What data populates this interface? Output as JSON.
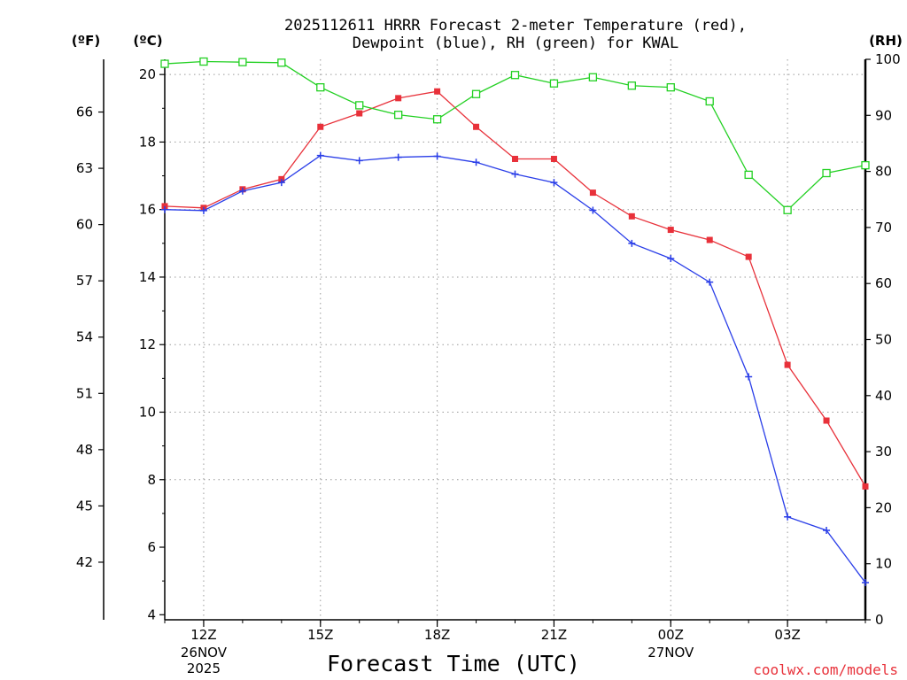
{
  "chart_data": {
    "type": "line",
    "title_line1": "2025112611 HRRR Forecast 2-meter Temperature (red),",
    "title_line2": "Dewpoint (blue), RH (green) for KWAL",
    "xlabel": "Forecast Time (UTC)",
    "credit": "coolwx.com/models",
    "credit_color": "#e8313a",
    "left_unit_f": "(ºF)",
    "left_unit_c": "(ºC)",
    "right_unit": "(RH)",
    "x_hours": [
      11,
      12,
      13,
      14,
      15,
      16,
      17,
      18,
      19,
      20,
      21,
      22,
      23,
      24,
      25,
      26,
      27,
      28,
      29
    ],
    "x_ticks": [
      {
        "hour": 12,
        "label": "12Z",
        "sub": [
          "26NOV",
          "2025"
        ]
      },
      {
        "hour": 15,
        "label": "15Z",
        "sub": []
      },
      {
        "hour": 18,
        "label": "18Z",
        "sub": []
      },
      {
        "hour": 21,
        "label": "21Z",
        "sub": []
      },
      {
        "hour": 24,
        "label": "00Z",
        "sub": [
          "27NOV"
        ]
      },
      {
        "hour": 27,
        "label": "03Z",
        "sub": []
      }
    ],
    "x_grid_hours": [
      12,
      15,
      18,
      21,
      24,
      27
    ],
    "xlim": [
      11,
      29
    ],
    "celsius_axis": {
      "lim": [
        3.85,
        20.45
      ],
      "ticks": [
        4,
        6,
        8,
        10,
        12,
        14,
        16,
        18,
        20
      ],
      "grid": [
        8,
        10,
        12,
        14,
        16,
        18,
        20
      ]
    },
    "fahrenheit_axis": {
      "ticks": [
        42,
        45,
        48,
        51,
        54,
        57,
        60,
        63,
        66
      ]
    },
    "rh_axis": {
      "lim": [
        0,
        100
      ],
      "ticks": [
        0,
        10,
        20,
        30,
        40,
        50,
        60,
        70,
        80,
        90,
        100
      ]
    },
    "series": [
      {
        "name": "Temperature",
        "unit": "C",
        "color": "#e8313a",
        "marker": "square-filled",
        "values": [
          16.1,
          16.05,
          16.6,
          16.9,
          18.45,
          18.85,
          19.3,
          19.5,
          18.45,
          17.5,
          17.5,
          16.5,
          15.8,
          15.4,
          15.1,
          14.6,
          11.4,
          9.75,
          7.8
        ]
      },
      {
        "name": "Dewpoint",
        "unit": "C",
        "color": "#2a3ee8",
        "marker": "plus",
        "values": [
          16.0,
          15.97,
          16.55,
          16.8,
          17.6,
          17.45,
          17.55,
          17.58,
          17.4,
          17.05,
          16.8,
          15.98,
          15.0,
          14.55,
          13.85,
          11.05,
          6.9,
          6.5,
          4.95
        ]
      },
      {
        "name": "RH",
        "unit": "%",
        "color": "#22d022",
        "marker": "square-open",
        "values": [
          99.2,
          99.6,
          99.5,
          99.4,
          95.0,
          91.8,
          90.1,
          89.3,
          93.8,
          97.2,
          95.7,
          96.8,
          95.3,
          95.0,
          92.5,
          79.4,
          73.1,
          79.7,
          81.1
        ]
      }
    ]
  }
}
